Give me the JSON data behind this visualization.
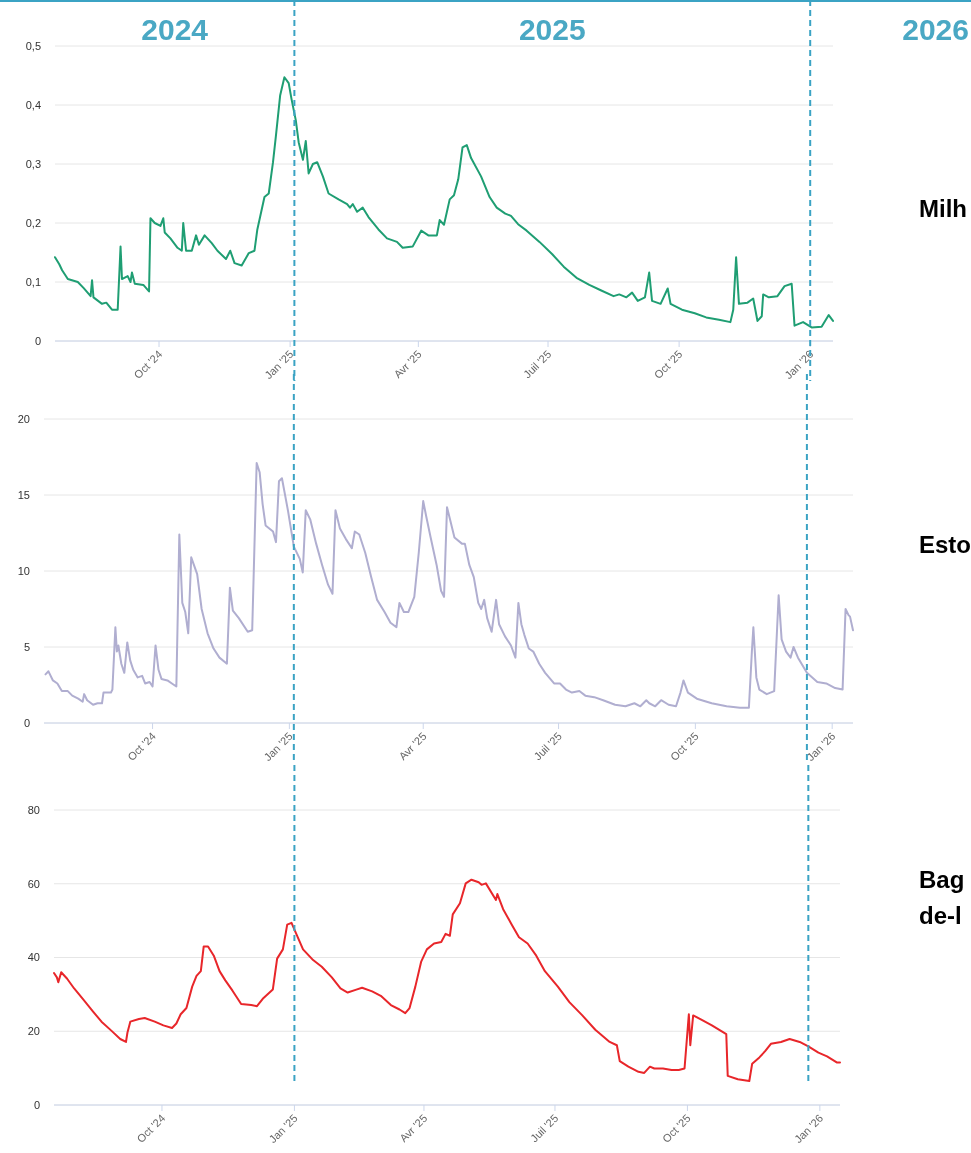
{
  "chart_data": [
    {
      "type": "line",
      "annotations": [
        "2024",
        "2025",
        "2026"
      ],
      "xlim": [
        "2024-07-20",
        "2026-01-17"
      ],
      "ylim": [
        0,
        0.5
      ],
      "yticks": [
        {
          "value": 0,
          "label": "0"
        },
        {
          "value": 0.1,
          "label": "0,1"
        },
        {
          "value": 0.2,
          "label": "0,2"
        },
        {
          "value": 0.3,
          "label": "0,3"
        },
        {
          "value": 0.4,
          "label": "0,4"
        },
        {
          "value": 0.5,
          "label": "0,5"
        }
      ],
      "xticks": [
        {
          "value": "2024-10-01",
          "label": "Oct '24"
        },
        {
          "value": "2025-01-01",
          "label": "Jan '25"
        },
        {
          "value": "2025-04-01",
          "label": "Avr '25"
        },
        {
          "value": "2025-07-01",
          "label": "Juil '25"
        },
        {
          "value": "2025-10-01",
          "label": "Oct '25"
        },
        {
          "value": "2026-01-01",
          "label": "Jan '26"
        }
      ],
      "grid": "y",
      "ref_lines": [
        {
          "axis": "x",
          "value": "2025-01-04",
          "color": "#3ba3c4",
          "line_style": "dashed"
        },
        {
          "axis": "x",
          "value": "2026-01-01",
          "color": "#3ba3c4",
          "line_style": "dashed"
        }
      ],
      "x": [
        "2024-07-20",
        "2024-07-23",
        "2024-07-25",
        "2024-07-29",
        "2024-08-05",
        "2024-08-09",
        "2024-08-14",
        "2024-08-15",
        "2024-08-16",
        "2024-08-22",
        "2024-08-25",
        "2024-08-29",
        "2024-09-02",
        "2024-09-04",
        "2024-09-05",
        "2024-09-09",
        "2024-09-11",
        "2024-09-12",
        "2024-09-14",
        "2024-09-20",
        "2024-09-24",
        "2024-09-25",
        "2024-09-28",
        "2024-10-02",
        "2024-10-04",
        "2024-10-05",
        "2024-10-09",
        "2024-10-14",
        "2024-10-17",
        "2024-10-18",
        "2024-10-20",
        "2024-10-24",
        "2024-10-27",
        "2024-10-29",
        "2024-11-02",
        "2024-11-07",
        "2024-11-11",
        "2024-11-17",
        "2024-11-20",
        "2024-11-23",
        "2024-11-28",
        "2024-12-03",
        "2024-12-07",
        "2024-12-09",
        "2024-12-14",
        "2024-12-17",
        "2024-12-20",
        "2024-12-22",
        "2024-12-25",
        "2024-12-28",
        "2024-12-31",
        "2025-01-02",
        "2025-01-05",
        "2025-01-07",
        "2025-01-10",
        "2025-01-12",
        "2025-01-14",
        "2025-01-17",
        "2025-01-20",
        "2025-01-24",
        "2025-01-28",
        "2025-02-04",
        "2025-02-10",
        "2025-02-12",
        "2025-02-14",
        "2025-02-17",
        "2025-02-21",
        "2025-02-25",
        "2025-03-04",
        "2025-03-10",
        "2025-03-17",
        "2025-03-21",
        "2025-03-28",
        "2025-04-03",
        "2025-04-08",
        "2025-04-14",
        "2025-04-16",
        "2025-04-19",
        "2025-04-23",
        "2025-04-26",
        "2025-04-29",
        "2025-05-02",
        "2025-05-05",
        "2025-05-08",
        "2025-05-15",
        "2025-05-21",
        "2025-05-26",
        "2025-06-01",
        "2025-06-05",
        "2025-06-10",
        "2025-06-16",
        "2025-06-25",
        "2025-07-04",
        "2025-07-12",
        "2025-07-21",
        "2025-07-30",
        "2025-08-07",
        "2025-08-16",
        "2025-08-20",
        "2025-08-25",
        "2025-08-29",
        "2025-09-02",
        "2025-09-07",
        "2025-09-10",
        "2025-09-12",
        "2025-09-18",
        "2025-09-23",
        "2025-09-25",
        "2025-10-03",
        "2025-10-12",
        "2025-10-20",
        "2025-10-29",
        "2025-11-06",
        "2025-11-08",
        "2025-11-10",
        "2025-11-12",
        "2025-11-18",
        "2025-11-22",
        "2025-11-25",
        "2025-11-28",
        "2025-11-29",
        "2025-12-03",
        "2025-12-09",
        "2025-12-14",
        "2025-12-19",
        "2025-12-21",
        "2025-12-27",
        "2026-01-02",
        "2026-01-09",
        "2026-01-14",
        "2026-01-17"
      ],
      "series": [
        {
          "name": "Milh",
          "color": "#1f9e73",
          "values": [
            0.142,
            0.13,
            0.12,
            0.105,
            0.1,
            0.09,
            0.076,
            0.103,
            0.074,
            0.063,
            0.065,
            0.053,
            0.053,
            0.16,
            0.105,
            0.11,
            0.1,
            0.116,
            0.097,
            0.095,
            0.084,
            0.208,
            0.2,
            0.195,
            0.208,
            0.184,
            0.174,
            0.158,
            0.153,
            0.2,
            0.153,
            0.153,
            0.179,
            0.163,
            0.179,
            0.166,
            0.153,
            0.139,
            0.153,
            0.132,
            0.128,
            0.149,
            0.153,
            0.189,
            0.244,
            0.25,
            0.303,
            0.347,
            0.416,
            0.447,
            0.437,
            0.41,
            0.374,
            0.337,
            0.307,
            0.339,
            0.284,
            0.3,
            0.303,
            0.279,
            0.25,
            0.24,
            0.232,
            0.226,
            0.232,
            0.219,
            0.226,
            0.21,
            0.189,
            0.174,
            0.168,
            0.158,
            0.16,
            0.187,
            0.179,
            0.179,
            0.205,
            0.197,
            0.24,
            0.247,
            0.274,
            0.328,
            0.332,
            0.31,
            0.279,
            0.244,
            0.226,
            0.216,
            0.212,
            0.198,
            0.187,
            0.168,
            0.147,
            0.126,
            0.107,
            0.095,
            0.086,
            0.076,
            0.079,
            0.074,
            0.082,
            0.068,
            0.074,
            0.116,
            0.068,
            0.063,
            0.089,
            0.063,
            0.053,
            0.047,
            0.04,
            0.036,
            0.032,
            0.053,
            0.142,
            0.063,
            0.065,
            0.072,
            0.034,
            0.042,
            0.079,
            0.074,
            0.076,
            0.093,
            0.097,
            0.026,
            0.032,
            0.023,
            0.024,
            0.044,
            0.034
          ]
        }
      ]
    },
    {
      "type": "line",
      "xlim": [
        "2024-07-20",
        "2026-01-15"
      ],
      "ylim": [
        0,
        20
      ],
      "yticks": [
        0,
        5,
        10,
        15,
        20
      ],
      "xticks": [
        {
          "value": "2024-10-01",
          "label": "Oct '24"
        },
        {
          "value": "2025-01-01",
          "label": "Jan '25"
        },
        {
          "value": "2025-04-01",
          "label": "Avr '25"
        },
        {
          "value": "2025-07-01",
          "label": "Juil '25"
        },
        {
          "value": "2025-10-01",
          "label": "Oct '25"
        },
        {
          "value": "2026-01-01",
          "label": "Jan '26"
        }
      ],
      "grid": "y",
      "ref_lines": [
        {
          "axis": "x",
          "value": "2025-01-04",
          "color": "#3ba3c4",
          "line_style": "dashed"
        },
        {
          "axis": "x",
          "value": "2025-12-15",
          "color": "#3ba3c4",
          "line_style": "dashed"
        }
      ],
      "x": [
        "2024-07-21",
        "2024-07-23",
        "2024-07-26",
        "2024-07-29",
        "2024-08-01",
        "2024-08-05",
        "2024-08-08",
        "2024-08-12",
        "2024-08-15",
        "2024-08-16",
        "2024-08-18",
        "2024-08-22",
        "2024-08-25",
        "2024-08-28",
        "2024-08-29",
        "2024-09-03",
        "2024-09-04",
        "2024-09-06",
        "2024-09-07",
        "2024-09-08",
        "2024-09-10",
        "2024-09-12",
        "2024-09-14",
        "2024-09-16",
        "2024-09-18",
        "2024-09-21",
        "2024-09-24",
        "2024-09-26",
        "2024-09-29",
        "2024-10-01",
        "2024-10-03",
        "2024-10-05",
        "2024-10-07",
        "2024-10-11",
        "2024-10-14",
        "2024-10-17",
        "2024-10-19",
        "2024-10-21",
        "2024-10-23",
        "2024-10-25",
        "2024-10-27",
        "2024-10-31",
        "2024-11-03",
        "2024-11-07",
        "2024-11-11",
        "2024-11-15",
        "2024-11-20",
        "2024-11-22",
        "2024-11-24",
        "2024-11-28",
        "2024-12-04",
        "2024-12-07",
        "2024-12-10",
        "2024-12-12",
        "2024-12-14",
        "2024-12-16",
        "2024-12-21",
        "2024-12-23",
        "2024-12-25",
        "2024-12-27",
        "2024-12-31",
        "2025-01-04",
        "2025-01-08",
        "2025-01-10",
        "2025-01-12",
        "2025-01-15",
        "2025-01-19",
        "2025-01-23",
        "2025-01-27",
        "2025-01-30",
        "2025-02-01",
        "2025-02-04",
        "2025-02-08",
        "2025-02-12",
        "2025-02-14",
        "2025-02-17",
        "2025-02-21",
        "2025-02-25",
        "2025-03-01",
        "2025-03-06",
        "2025-03-10",
        "2025-03-14",
        "2025-03-16",
        "2025-03-19",
        "2025-03-22",
        "2025-03-26",
        "2025-03-29",
        "2025-04-01",
        "2025-04-03",
        "2025-04-06",
        "2025-04-10",
        "2025-04-13",
        "2025-04-15",
        "2025-04-17",
        "2025-04-19",
        "2025-04-22",
        "2025-04-27",
        "2025-04-29",
        "2025-05-02",
        "2025-05-05",
        "2025-05-08",
        "2025-05-10",
        "2025-05-12",
        "2025-05-14",
        "2025-05-17",
        "2025-05-20",
        "2025-05-22",
        "2025-05-26",
        "2025-05-30",
        "2025-06-02",
        "2025-06-04",
        "2025-06-06",
        "2025-06-08",
        "2025-06-11",
        "2025-06-14",
        "2025-06-18",
        "2025-06-22",
        "2025-06-28",
        "2025-07-02",
        "2025-07-06",
        "2025-07-10",
        "2025-07-15",
        "2025-07-19",
        "2025-07-25",
        "2025-07-31",
        "2025-08-08",
        "2025-08-15",
        "2025-08-21",
        "2025-08-25",
        "2025-08-29",
        "2025-08-31",
        "2025-09-04",
        "2025-09-08",
        "2025-09-13",
        "2025-09-18",
        "2025-09-21",
        "2025-09-23",
        "2025-09-26",
        "2025-10-02",
        "2025-10-12",
        "2025-10-22",
        "2025-10-31",
        "2025-11-06",
        "2025-11-08",
        "2025-11-09",
        "2025-11-11",
        "2025-11-13",
        "2025-11-18",
        "2025-11-23",
        "2025-11-25",
        "2025-11-26",
        "2025-11-28",
        "2025-12-01",
        "2025-12-04",
        "2025-12-06",
        "2025-12-09",
        "2025-12-15",
        "2025-12-22",
        "2025-12-28",
        "2026-01-03",
        "2026-01-08",
        "2026-01-10",
        "2026-01-12",
        "2026-01-13",
        "2026-01-15"
      ],
      "series": [
        {
          "name": "Esto",
          "color": "#b0aed0",
          "values": [
            3.2,
            3.4,
            2.8,
            2.6,
            2.1,
            2.1,
            1.8,
            1.6,
            1.4,
            1.9,
            1.5,
            1.2,
            1.3,
            1.3,
            2.0,
            2.0,
            2.2,
            6.3,
            4.7,
            5.1,
            3.9,
            3.3,
            5.3,
            4.1,
            3.5,
            3.0,
            3.1,
            2.6,
            2.7,
            2.4,
            5.1,
            3.5,
            2.9,
            2.8,
            2.6,
            2.4,
            12.4,
            7.9,
            7.3,
            5.9,
            10.9,
            9.8,
            7.5,
            5.9,
            4.9,
            4.3,
            3.9,
            8.9,
            7.4,
            6.9,
            6.0,
            6.1,
            17.1,
            16.5,
            14.4,
            13.0,
            12.6,
            11.9,
            15.9,
            16.1,
            14.0,
            11.6,
            10.8,
            9.9,
            14.0,
            13.4,
            11.8,
            10.4,
            9.1,
            8.5,
            14.0,
            12.8,
            12.1,
            11.5,
            12.6,
            12.4,
            11.2,
            9.6,
            8.1,
            7.3,
            6.6,
            6.3,
            7.9,
            7.3,
            7.3,
            8.3,
            11.2,
            14.6,
            13.6,
            12.2,
            10.4,
            8.7,
            8.3,
            14.2,
            13.4,
            12.2,
            11.8,
            11.8,
            10.4,
            9.6,
            7.9,
            7.5,
            8.1,
            6.9,
            6.0,
            8.1,
            6.5,
            5.7,
            5.1,
            4.3,
            7.9,
            6.5,
            5.8,
            4.9,
            4.7,
            3.9,
            3.3,
            2.6,
            2.6,
            2.2,
            2.0,
            2.1,
            1.8,
            1.7,
            1.5,
            1.2,
            1.1,
            1.3,
            1.1,
            1.5,
            1.3,
            1.1,
            1.5,
            1.2,
            1.1,
            2.0,
            2.8,
            2.0,
            1.6,
            1.3,
            1.1,
            1.0,
            1.0,
            4.7,
            6.3,
            3.0,
            2.2,
            1.9,
            2.1,
            6.3,
            8.4,
            5.5,
            4.7,
            4.3,
            5.0,
            4.3,
            3.3,
            2.7,
            2.6,
            2.3,
            2.2,
            7.5,
            7.1,
            7.0,
            6.1
          ]
        }
      ]
    },
    {
      "type": "line",
      "xlim": [
        "2024-07-18",
        "2026-01-15"
      ],
      "ylim": [
        0,
        80
      ],
      "yticks": [
        0,
        20,
        40,
        60,
        80
      ],
      "xticks": [
        {
          "value": "2024-10-01",
          "label": "Oct '24"
        },
        {
          "value": "2025-01-01",
          "label": "Jan '25"
        },
        {
          "value": "2025-04-01",
          "label": "Avr '25"
        },
        {
          "value": "2025-07-01",
          "label": "Juil '25"
        },
        {
          "value": "2025-10-01",
          "label": "Oct '25"
        },
        {
          "value": "2026-01-01",
          "label": "Jan '26"
        }
      ],
      "grid": "y",
      "ref_lines": [
        {
          "axis": "x",
          "value": "2025-01-01",
          "color": "#3ba3c4",
          "line_style": "dashed"
        },
        {
          "axis": "x",
          "value": "2025-12-24",
          "color": "#3ba3c4",
          "line_style": "dashed"
        }
      ],
      "x": [
        "2024-07-18",
        "2024-07-20",
        "2024-07-21",
        "2024-07-23",
        "2024-07-27",
        "2024-08-01",
        "2024-08-07",
        "2024-08-14",
        "2024-08-20",
        "2024-08-27",
        "2024-09-02",
        "2024-09-06",
        "2024-09-07",
        "2024-09-09",
        "2024-09-15",
        "2024-09-19",
        "2024-09-26",
        "2024-10-02",
        "2024-10-08",
        "2024-10-11",
        "2024-10-14",
        "2024-10-18",
        "2024-10-22",
        "2024-10-25",
        "2024-10-28",
        "2024-10-30",
        "2024-11-02",
        "2024-11-06",
        "2024-11-10",
        "2024-11-14",
        "2024-11-19",
        "2024-11-25",
        "2024-12-02",
        "2024-12-06",
        "2024-12-10",
        "2024-12-17",
        "2024-12-20",
        "2024-12-24",
        "2024-12-27",
        "2024-12-30",
        "2025-01-02",
        "2025-01-07",
        "2025-01-14",
        "2025-01-20",
        "2025-01-27",
        "2025-02-02",
        "2025-02-07",
        "2025-02-13",
        "2025-02-17",
        "2025-02-24",
        "2025-03-02",
        "2025-03-09",
        "2025-03-15",
        "2025-03-19",
        "2025-03-22",
        "2025-03-26",
        "2025-03-30",
        "2025-04-03",
        "2025-04-08",
        "2025-04-13",
        "2025-04-16",
        "2025-04-19",
        "2025-04-21",
        "2025-04-26",
        "2025-04-30",
        "2025-05-04",
        "2025-05-09",
        "2025-05-11",
        "2025-05-14",
        "2025-05-21",
        "2025-05-22",
        "2025-05-26",
        "2025-06-01",
        "2025-06-06",
        "2025-06-12",
        "2025-06-18",
        "2025-06-24",
        "2025-07-03",
        "2025-07-11",
        "2025-07-20",
        "2025-07-29",
        "2025-08-08",
        "2025-08-13",
        "2025-08-15",
        "2025-08-21",
        "2025-08-28",
        "2025-09-01",
        "2025-09-05",
        "2025-09-08",
        "2025-09-14",
        "2025-09-20",
        "2025-09-25",
        "2025-09-29",
        "2025-10-02",
        "2025-10-03",
        "2025-10-05",
        "2025-10-10",
        "2025-10-18",
        "2025-10-28",
        "2025-10-29",
        "2025-11-05",
        "2025-11-13",
        "2025-11-15",
        "2025-11-20",
        "2025-11-24",
        "2025-11-28",
        "2025-12-05",
        "2025-12-11",
        "2025-12-18",
        "2025-12-24",
        "2025-12-31",
        "2026-01-06",
        "2026-01-13",
        "2026-01-15"
      ],
      "series": [
        {
          "name": "Bag de-l",
          "color": "#e8262a",
          "values": [
            35.8,
            34.6,
            33.3,
            36,
            34.3,
            31.6,
            28.8,
            25.4,
            22.6,
            20.1,
            17.9,
            17.1,
            19.6,
            22.6,
            23.3,
            23.6,
            22.6,
            21.6,
            20.9,
            22.1,
            24.6,
            26.3,
            32.1,
            35,
            36.3,
            43,
            43,
            40.5,
            36.3,
            33.8,
            31,
            27.4,
            27.1,
            26.8,
            28.8,
            31.3,
            39.7,
            42.2,
            48.9,
            49.4,
            46.7,
            42.2,
            39.3,
            37.5,
            34.6,
            31.6,
            30.5,
            31.3,
            31.8,
            30.8,
            29.6,
            27.1,
            25.9,
            24.9,
            26.3,
            32.1,
            38.8,
            42.2,
            43.8,
            44.2,
            46.4,
            45.9,
            51.7,
            54.7,
            60.1,
            61.1,
            60.4,
            59.7,
            60.1,
            55.6,
            57.2,
            53.1,
            48.9,
            45.5,
            43.8,
            40.5,
            36.3,
            32.1,
            27.9,
            24.3,
            20.4,
            17.1,
            16.2,
            11.9,
            10.4,
            9,
            8.7,
            10.4,
            9.9,
            9.9,
            9.5,
            9.5,
            9.9,
            24.6,
            16.2,
            24.3,
            23.3,
            21.6,
            19.2,
            7.9,
            7,
            6.5,
            11.2,
            12.9,
            14.6,
            16.6,
            17.1,
            17.9,
            17.1,
            15.9,
            14.2,
            13.2,
            11.5,
            11.5
          ]
        }
      ]
    }
  ]
}
